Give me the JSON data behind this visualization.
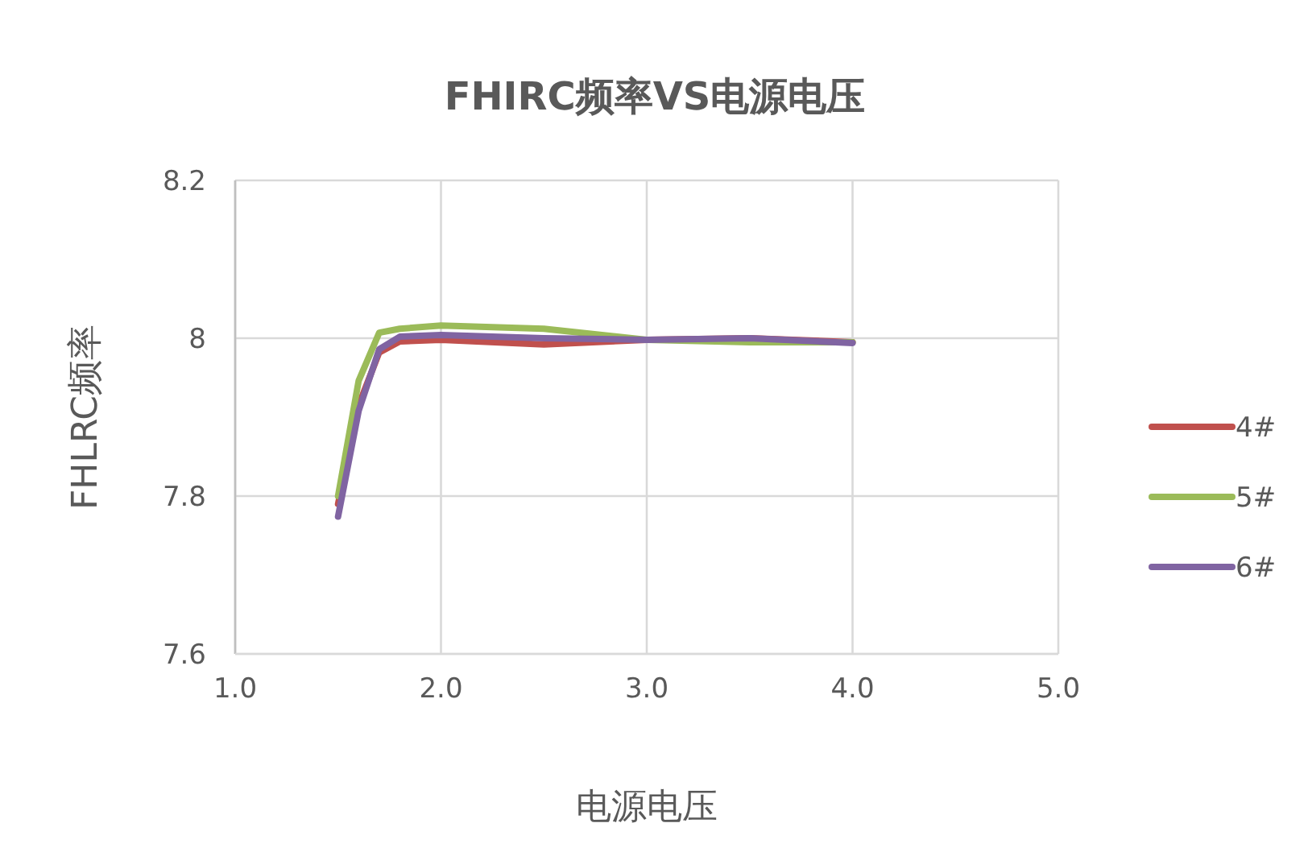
{
  "chart_data": {
    "type": "line",
    "title": "FHIRC频率VS电源电压",
    "xlabel": "电源电压",
    "ylabel": "FHLRC频率",
    "x": [
      1.5,
      1.6,
      1.7,
      1.8,
      2.0,
      2.5,
      3.0,
      3.5,
      4.0
    ],
    "series": [
      {
        "name": "4#",
        "color": "#c0504d",
        "values": [
          7.79,
          7.915,
          7.982,
          7.996,
          7.998,
          7.992,
          7.998,
          8.0,
          7.995
        ]
      },
      {
        "name": "5#",
        "color": "#9bbb59",
        "values": [
          7.8,
          7.946,
          8.007,
          8.012,
          8.016,
          8.012,
          7.998,
          7.995,
          7.995
        ]
      },
      {
        "name": "6#",
        "color": "#8064a2",
        "values": [
          7.774,
          7.908,
          7.986,
          8.002,
          8.004,
          8.0,
          7.998,
          8.0,
          7.994
        ]
      }
    ],
    "xlim": [
      1,
      5
    ],
    "xticks": [
      {
        "value": 1,
        "label": "1.0"
      },
      {
        "value": 2,
        "label": "2.0"
      },
      {
        "value": 3,
        "label": "3.0"
      },
      {
        "value": 4,
        "label": "4.0"
      },
      {
        "value": 5,
        "label": "5.0"
      }
    ],
    "ylim": [
      7.6,
      8.2
    ],
    "yticks": [
      7.6,
      7.8,
      8,
      8.2
    ],
    "grid": true,
    "legend": "right",
    "marker": "none",
    "line_style": "solid"
  }
}
